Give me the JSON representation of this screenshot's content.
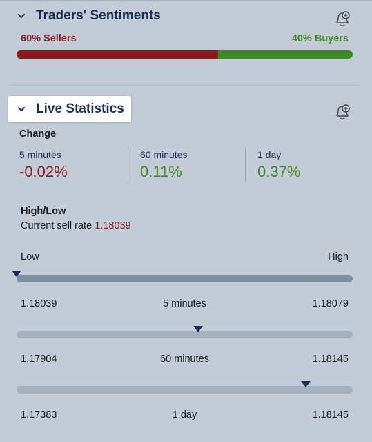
{
  "sentiments": {
    "title": "Traders' Sentiments",
    "sellers_label": "60% Sellers",
    "buyers_label": "40% Buyers",
    "sellers_fraction": 0.6,
    "colors": {
      "sellers": "#8b1a1f",
      "buyers": "#3d8b25"
    }
  },
  "live": {
    "title": "Live Statistics",
    "change_title": "Change",
    "changes": [
      {
        "label": "5 minutes",
        "value": "-0.02%",
        "color": "#8b1a1f"
      },
      {
        "label": "60 minutes",
        "value": "0.11%",
        "color": "#3d8b25"
      },
      {
        "label": "1 day",
        "value": "0.37%",
        "color": "#3d8b25"
      }
    ],
    "highlow_title": "High/Low",
    "current_sell_label": "Current sell rate",
    "current_sell_value": "1.18039",
    "low_label": "Low",
    "high_label": "High",
    "ranges": [
      {
        "low": "1.18039",
        "label": "5 minutes",
        "high": "1.18079",
        "position": 0.0
      },
      {
        "low": "1.17904",
        "label": "60 minutes",
        "high": "1.18145",
        "position": 0.54
      },
      {
        "low": "1.17383",
        "label": "1 day",
        "high": "1.18145",
        "position": 0.86
      }
    ]
  },
  "icons": {
    "collapse": "chevron-down-icon",
    "alert": "bell-plus-icon"
  }
}
